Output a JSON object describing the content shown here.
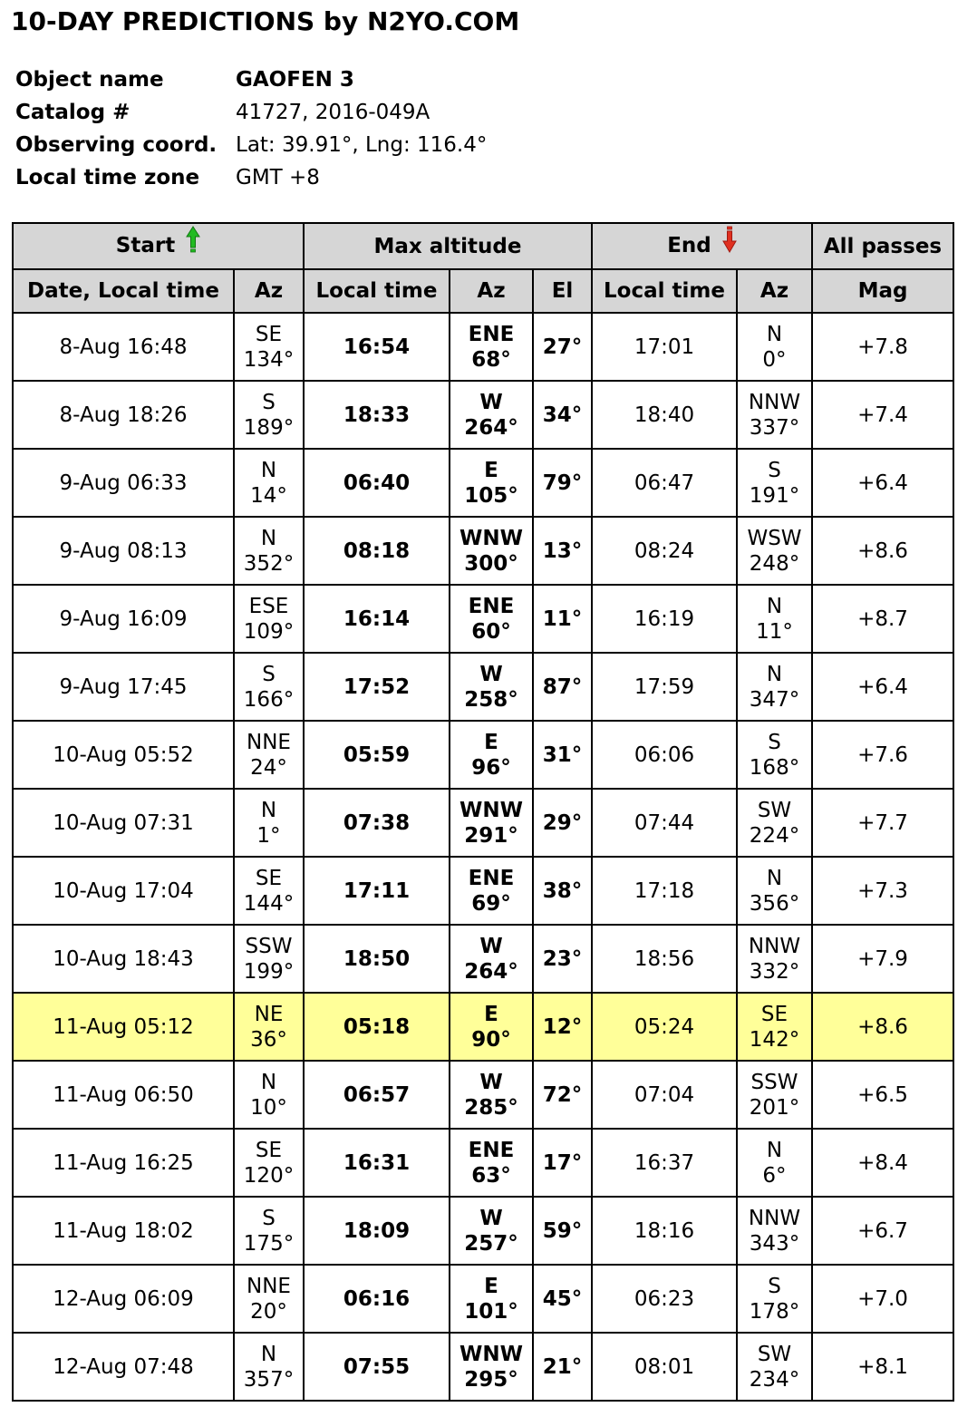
{
  "title": "10-DAY PREDICTIONS by N2YO.COM",
  "info": {
    "object_name_label": "Object name",
    "object_name": "GAOFEN 3",
    "catalog_label": "Catalog #",
    "catalog": "41727, 2016-049A",
    "coord_label": "Observing coord.",
    "coord": "Lat: 39.91°, Lng: 116.4°",
    "tz_label": "Local time zone",
    "tz": "GMT +8"
  },
  "table": {
    "group_headers": {
      "start": "Start",
      "max_altitude": "Max altitude",
      "end": "End",
      "all_passes": "All passes"
    },
    "sub_headers": {
      "date_local_time": "Date, Local time",
      "az": "Az",
      "local_time": "Local time",
      "el": "El",
      "mag": "Mag"
    },
    "icons": {
      "start": "green-up-arrow-icon",
      "end": "red-down-arrow-icon"
    },
    "colors": {
      "header_bg": "#d6d6d6",
      "highlight_bg": "#ffff99",
      "start_arrow": "#22bb22",
      "end_arrow": "#e03020"
    },
    "rows": [
      {
        "start_time": "8-Aug 16:48",
        "start_dir": "SE",
        "start_deg": "134°",
        "max_time": "16:54",
        "max_dir": "ENE",
        "max_deg": "68°",
        "el": "27°",
        "end_time": "17:01",
        "end_dir": "N",
        "end_deg": "0°",
        "mag": "+7.8"
      },
      {
        "start_time": "8-Aug 18:26",
        "start_dir": "S",
        "start_deg": "189°",
        "max_time": "18:33",
        "max_dir": "W",
        "max_deg": "264°",
        "el": "34°",
        "end_time": "18:40",
        "end_dir": "NNW",
        "end_deg": "337°",
        "mag": "+7.4"
      },
      {
        "start_time": "9-Aug 06:33",
        "start_dir": "N",
        "start_deg": "14°",
        "max_time": "06:40",
        "max_dir": "E",
        "max_deg": "105°",
        "el": "79°",
        "end_time": "06:47",
        "end_dir": "S",
        "end_deg": "191°",
        "mag": "+6.4"
      },
      {
        "start_time": "9-Aug 08:13",
        "start_dir": "N",
        "start_deg": "352°",
        "max_time": "08:18",
        "max_dir": "WNW",
        "max_deg": "300°",
        "el": "13°",
        "end_time": "08:24",
        "end_dir": "WSW",
        "end_deg": "248°",
        "mag": "+8.6"
      },
      {
        "start_time": "9-Aug 16:09",
        "start_dir": "ESE",
        "start_deg": "109°",
        "max_time": "16:14",
        "max_dir": "ENE",
        "max_deg": "60°",
        "el": "11°",
        "end_time": "16:19",
        "end_dir": "N",
        "end_deg": "11°",
        "mag": "+8.7"
      },
      {
        "start_time": "9-Aug 17:45",
        "start_dir": "S",
        "start_deg": "166°",
        "max_time": "17:52",
        "max_dir": "W",
        "max_deg": "258°",
        "el": "87°",
        "end_time": "17:59",
        "end_dir": "N",
        "end_deg": "347°",
        "mag": "+6.4"
      },
      {
        "start_time": "10-Aug 05:52",
        "start_dir": "NNE",
        "start_deg": "24°",
        "max_time": "05:59",
        "max_dir": "E",
        "max_deg": "96°",
        "el": "31°",
        "end_time": "06:06",
        "end_dir": "S",
        "end_deg": "168°",
        "mag": "+7.6"
      },
      {
        "start_time": "10-Aug 07:31",
        "start_dir": "N",
        "start_deg": "1°",
        "max_time": "07:38",
        "max_dir": "WNW",
        "max_deg": "291°",
        "el": "29°",
        "end_time": "07:44",
        "end_dir": "SW",
        "end_deg": "224°",
        "mag": "+7.7"
      },
      {
        "start_time": "10-Aug 17:04",
        "start_dir": "SE",
        "start_deg": "144°",
        "max_time": "17:11",
        "max_dir": "ENE",
        "max_deg": "69°",
        "el": "38°",
        "end_time": "17:18",
        "end_dir": "N",
        "end_deg": "356°",
        "mag": "+7.3"
      },
      {
        "start_time": "10-Aug 18:43",
        "start_dir": "SSW",
        "start_deg": "199°",
        "max_time": "18:50",
        "max_dir": "W",
        "max_deg": "264°",
        "el": "23°",
        "end_time": "18:56",
        "end_dir": "NNW",
        "end_deg": "332°",
        "mag": "+7.9"
      },
      {
        "start_time": "11-Aug 05:12",
        "start_dir": "NE",
        "start_deg": "36°",
        "max_time": "05:18",
        "max_dir": "E",
        "max_deg": "90°",
        "el": "12°",
        "end_time": "05:24",
        "end_dir": "SE",
        "end_deg": "142°",
        "mag": "+8.6",
        "highlight": true
      },
      {
        "start_time": "11-Aug 06:50",
        "start_dir": "N",
        "start_deg": "10°",
        "max_time": "06:57",
        "max_dir": "W",
        "max_deg": "285°",
        "el": "72°",
        "end_time": "07:04",
        "end_dir": "SSW",
        "end_deg": "201°",
        "mag": "+6.5"
      },
      {
        "start_time": "11-Aug 16:25",
        "start_dir": "SE",
        "start_deg": "120°",
        "max_time": "16:31",
        "max_dir": "ENE",
        "max_deg": "63°",
        "el": "17°",
        "end_time": "16:37",
        "end_dir": "N",
        "end_deg": "6°",
        "mag": "+8.4"
      },
      {
        "start_time": "11-Aug 18:02",
        "start_dir": "S",
        "start_deg": "175°",
        "max_time": "18:09",
        "max_dir": "W",
        "max_deg": "257°",
        "el": "59°",
        "end_time": "18:16",
        "end_dir": "NNW",
        "end_deg": "343°",
        "mag": "+6.7"
      },
      {
        "start_time": "12-Aug 06:09",
        "start_dir": "NNE",
        "start_deg": "20°",
        "max_time": "06:16",
        "max_dir": "E",
        "max_deg": "101°",
        "el": "45°",
        "end_time": "06:23",
        "end_dir": "S",
        "end_deg": "178°",
        "mag": "+7.0"
      },
      {
        "start_time": "12-Aug 07:48",
        "start_dir": "N",
        "start_deg": "357°",
        "max_time": "07:55",
        "max_dir": "WNW",
        "max_deg": "295°",
        "el": "21°",
        "end_time": "08:01",
        "end_dir": "SW",
        "end_deg": "234°",
        "mag": "+8.1"
      }
    ]
  }
}
